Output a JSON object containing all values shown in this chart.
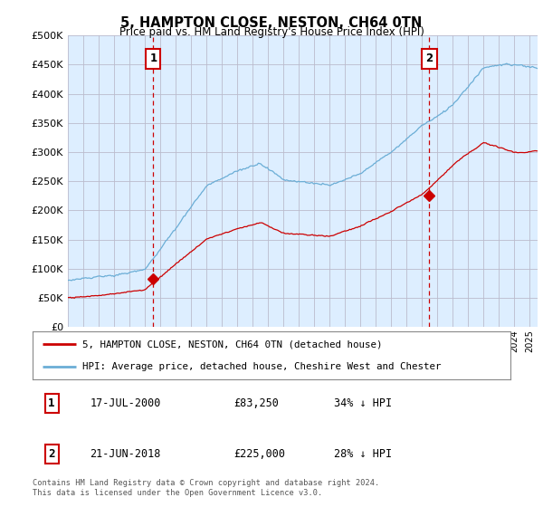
{
  "title": "5, HAMPTON CLOSE, NESTON, CH64 0TN",
  "subtitle": "Price paid vs. HM Land Registry's House Price Index (HPI)",
  "ylim": [
    0,
    500000
  ],
  "yticks": [
    0,
    50000,
    100000,
    150000,
    200000,
    250000,
    300000,
    350000,
    400000,
    450000,
    500000
  ],
  "xlim_start": 1995.0,
  "xlim_end": 2025.5,
  "sale1_x": 2000.54,
  "sale1_y": 83250,
  "sale1_label": "1",
  "sale2_x": 2018.47,
  "sale2_y": 225000,
  "sale2_label": "2",
  "hpi_color": "#6baed6",
  "price_color": "#cc0000",
  "vline_color": "#cc0000",
  "marker_color": "#cc0000",
  "chart_bg": "#ddeeff",
  "legend_entry1": "5, HAMPTON CLOSE, NESTON, CH64 0TN (detached house)",
  "legend_entry2": "HPI: Average price, detached house, Cheshire West and Chester",
  "table_row1": [
    "1",
    "17-JUL-2000",
    "£83,250",
    "34% ↓ HPI"
  ],
  "table_row2": [
    "2",
    "21-JUN-2018",
    "£225,000",
    "28% ↓ HPI"
  ],
  "footer": "Contains HM Land Registry data © Crown copyright and database right 2024.\nThis data is licensed under the Open Government Licence v3.0.",
  "bg_color": "#ffffff",
  "grid_color": "#bbbbcc"
}
